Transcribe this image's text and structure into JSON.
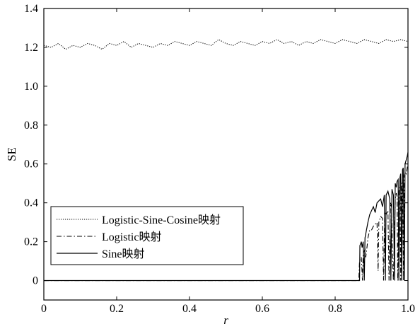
{
  "chart_data": {
    "type": "line",
    "title": "",
    "xlabel": "r",
    "ylabel": "SE",
    "xlim": [
      0,
      1.0
    ],
    "ylim": [
      -0.1,
      1.4
    ],
    "x_ticks": [
      "0",
      "0.2",
      "0.4",
      "0.6",
      "0.8",
      "1.0"
    ],
    "y_ticks": [
      "0",
      "0.2",
      "0.4",
      "0.6",
      "0.8",
      "1.0",
      "1.2",
      "1.4"
    ],
    "x_tick_values": [
      0,
      0.2,
      0.4,
      0.6,
      0.8,
      1.0
    ],
    "y_tick_values": [
      0,
      0.2,
      0.4,
      0.6,
      0.8,
      1.0,
      1.2,
      1.4
    ],
    "grid": false,
    "legend_position": "lower-left",
    "series": [
      {
        "name": "Logistic-Sine-Cosine映射",
        "style": "dotted",
        "x": [
          0.0,
          0.02,
          0.04,
          0.06,
          0.08,
          0.1,
          0.12,
          0.14,
          0.16,
          0.18,
          0.2,
          0.22,
          0.24,
          0.26,
          0.28,
          0.3,
          0.32,
          0.34,
          0.36,
          0.38,
          0.4,
          0.42,
          0.44,
          0.46,
          0.48,
          0.5,
          0.52,
          0.54,
          0.56,
          0.58,
          0.6,
          0.62,
          0.64,
          0.66,
          0.68,
          0.7,
          0.72,
          0.74,
          0.76,
          0.78,
          0.8,
          0.82,
          0.84,
          0.86,
          0.88,
          0.9,
          0.92,
          0.94,
          0.96,
          0.98,
          1.0
        ],
        "y": [
          1.21,
          1.2,
          1.22,
          1.19,
          1.21,
          1.2,
          1.22,
          1.21,
          1.19,
          1.22,
          1.21,
          1.23,
          1.2,
          1.22,
          1.21,
          1.2,
          1.22,
          1.21,
          1.23,
          1.22,
          1.21,
          1.23,
          1.22,
          1.21,
          1.24,
          1.22,
          1.21,
          1.23,
          1.22,
          1.21,
          1.23,
          1.22,
          1.24,
          1.22,
          1.23,
          1.21,
          1.23,
          1.22,
          1.24,
          1.23,
          1.22,
          1.24,
          1.23,
          1.22,
          1.24,
          1.23,
          1.22,
          1.24,
          1.23,
          1.24,
          1.23
        ]
      },
      {
        "name": "Logistic映射",
        "style": "dashdot",
        "x": [
          0.0,
          0.8,
          0.865,
          0.867,
          0.872,
          0.875,
          0.877,
          0.882,
          0.884,
          0.888,
          0.89,
          0.895,
          0.9,
          0.905,
          0.91,
          0.915,
          0.918,
          0.92,
          0.925,
          0.93,
          0.933,
          0.936,
          0.94,
          0.945,
          0.948,
          0.952,
          0.955,
          0.958,
          0.96,
          0.965,
          0.968,
          0.97,
          0.972,
          0.975,
          0.978,
          0.98,
          0.983,
          0.985,
          0.988,
          0.99,
          0.993,
          0.995,
          0.998,
          1.0
        ],
        "y": [
          0.0,
          0.0,
          0.0,
          0.1,
          0.12,
          0.0,
          0.14,
          0.16,
          0.12,
          0.18,
          0.22,
          0.26,
          0.26,
          0.28,
          0.29,
          0.3,
          0.05,
          0.3,
          0.33,
          0.32,
          0.0,
          0.35,
          0.34,
          0.36,
          0.0,
          0.4,
          0.38,
          0.1,
          0.0,
          0.42,
          0.45,
          0.43,
          0.0,
          0.46,
          0.49,
          0.0,
          0.5,
          0.52,
          0.0,
          0.54,
          0.56,
          0.55,
          0.58,
          0.6
        ]
      },
      {
        "name": "Sine映射",
        "style": "solid",
        "x": [
          0.0,
          0.86,
          0.867,
          0.868,
          0.872,
          0.874,
          0.877,
          0.88,
          0.882,
          0.886,
          0.89,
          0.895,
          0.9,
          0.905,
          0.91,
          0.915,
          0.92,
          0.925,
          0.93,
          0.935,
          0.938,
          0.94,
          0.945,
          0.95,
          0.953,
          0.956,
          0.96,
          0.963,
          0.965,
          0.968,
          0.97,
          0.973,
          0.975,
          0.978,
          0.98,
          0.983,
          0.985,
          0.987,
          0.99,
          0.992,
          0.995,
          0.998,
          1.0
        ],
        "y": [
          0.0,
          0.0,
          0.0,
          0.18,
          0.2,
          0.17,
          0.2,
          0.0,
          0.22,
          0.26,
          0.3,
          0.34,
          0.36,
          0.38,
          0.35,
          0.4,
          0.41,
          0.42,
          0.38,
          0.44,
          0.0,
          0.44,
          0.46,
          0.42,
          0.0,
          0.47,
          0.44,
          0.0,
          0.5,
          0.48,
          0.51,
          0.52,
          0.0,
          0.53,
          0.55,
          0.0,
          0.57,
          0.58,
          0.0,
          0.6,
          0.62,
          0.64,
          0.66
        ]
      }
    ]
  }
}
